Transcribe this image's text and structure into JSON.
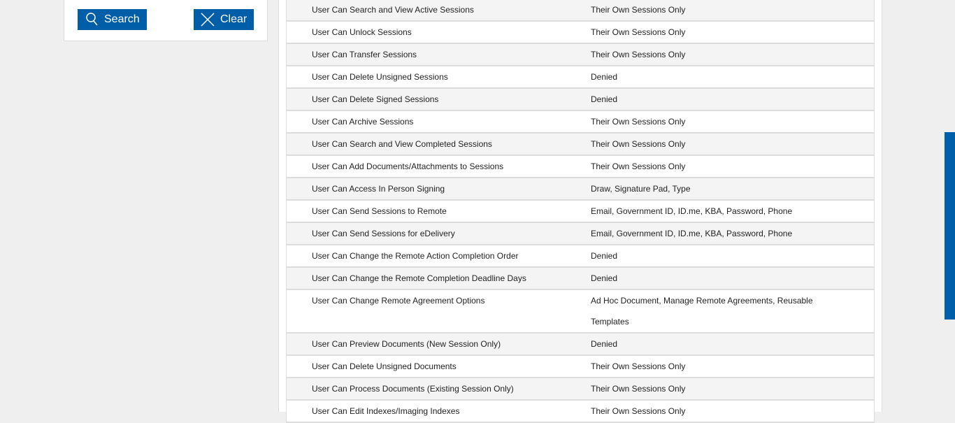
{
  "filters": {
    "search_label": "Search",
    "clear_label": "Clear"
  },
  "colors": {
    "accent": "#005ea8"
  },
  "permissions": [
    {
      "name": "User Can Search and View Active Sessions",
      "value": "Their Own Sessions Only"
    },
    {
      "name": "User Can Unlock Sessions",
      "value": "Their Own Sessions Only"
    },
    {
      "name": "User Can Transfer Sessions",
      "value": "Their Own Sessions Only"
    },
    {
      "name": "User Can Delete Unsigned Sessions",
      "value": "Denied"
    },
    {
      "name": "User Can Delete Signed Sessions",
      "value": "Denied"
    },
    {
      "name": "User Can Archive Sessions",
      "value": "Their Own Sessions Only"
    },
    {
      "name": "User Can Search and View Completed Sessions",
      "value": "Their Own Sessions Only"
    },
    {
      "name": "User Can Add Documents/Attachments to Sessions",
      "value": "Their Own Sessions Only"
    },
    {
      "name": "User Can Access In Person Signing",
      "value": "Draw, Signature Pad, Type"
    },
    {
      "name": "User Can Send Sessions to Remote",
      "value": "Email, Government ID, ID.me, KBA, Password, Phone"
    },
    {
      "name": "User Can Send Sessions for eDelivery",
      "value": "Email, Government ID, ID.me, KBA, Password, Phone"
    },
    {
      "name": "User Can Change the Remote Action Completion Order",
      "value": "Denied"
    },
    {
      "name": "User Can Change the Remote Completion Deadline Days",
      "value": "Denied"
    },
    {
      "name": "User Can Change Remote Agreement Options",
      "value": "Ad Hoc Document, Manage Remote Agreements, Reusable Templates"
    },
    {
      "name": "User Can Preview Documents (New Session Only)",
      "value": "Denied"
    },
    {
      "name": "User Can Delete Unsigned Documents",
      "value": "Their Own Sessions Only"
    },
    {
      "name": "User Can Process Documents (Existing Session Only)",
      "value": "Their Own Sessions Only"
    },
    {
      "name": "User Can Edit Indexes/Imaging Indexes",
      "value": "Their Own Sessions Only"
    }
  ]
}
